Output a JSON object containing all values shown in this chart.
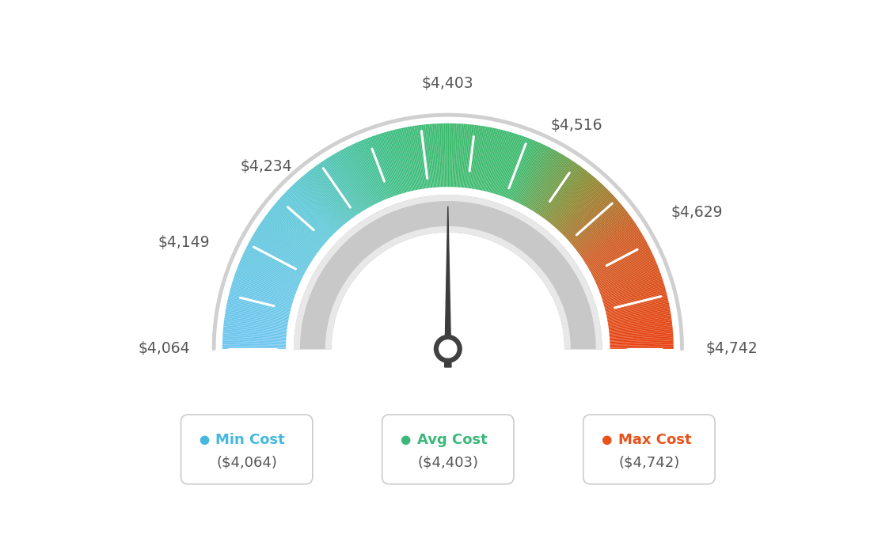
{
  "min_val": 4064,
  "max_val": 4742,
  "avg_val": 4403,
  "legend_values": [
    "($4,064)",
    "($4,403)",
    "($4,742)"
  ],
  "legend_labels": [
    "Min Cost",
    "Avg Cost",
    "Max Cost"
  ],
  "legend_colors": [
    "#45b8e0",
    "#3bb87a",
    "#e8521a"
  ],
  "color_stops": [
    [
      0.0,
      "#6ec6f0"
    ],
    [
      0.25,
      "#5ec8d8"
    ],
    [
      0.4,
      "#3dbe85"
    ],
    [
      0.5,
      "#3dba6e"
    ],
    [
      0.62,
      "#3dba6e"
    ],
    [
      0.72,
      "#8a8a30"
    ],
    [
      0.82,
      "#d05a20"
    ],
    [
      1.0,
      "#e84010"
    ]
  ],
  "background_color": "#ffffff",
  "tick_label_data": [
    [
      4064,
      "$4,064"
    ],
    [
      4149,
      "$4,149"
    ],
    [
      4234,
      "$4,234"
    ],
    [
      4403,
      "$4,403"
    ],
    [
      4516,
      "$4,516"
    ],
    [
      4629,
      "$4,629"
    ],
    [
      4742,
      "$4,742"
    ]
  ]
}
